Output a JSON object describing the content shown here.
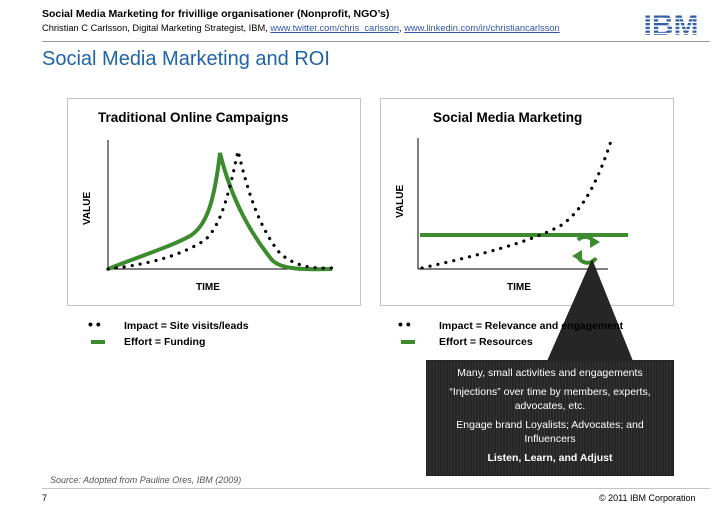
{
  "header": {
    "title": "Social Media Marketing for frivillige organisationer (Nonprofit, NGO’s)",
    "subtitle_prefix": "Christian C Carlsson, Digital Marketing Strategist, IBM, ",
    "link_twitter": "www.twitter.com/chris_carlsson",
    "separator": ", ",
    "link_linkedin": "www.linkedin.com/in/christiancarlsson",
    "logo": "IBM"
  },
  "slide_title": "Social Media Marketing and ROI",
  "panel_left": {
    "title": "Traditional Online Campaigns",
    "ylabel": "VALUE",
    "xlabel": "TIME",
    "legend": [
      {
        "symbol": "dots",
        "text": "Impact = Site visits/leads"
      },
      {
        "symbol": "bar",
        "text": "Effort = Funding"
      }
    ]
  },
  "panel_right": {
    "title": "Social Media Marketing",
    "ylabel": "VALUE",
    "xlabel": "TIME",
    "cycle_icon": "recycle-arrows-icon",
    "legend": [
      {
        "symbol": "dots",
        "text": "Impact = Relevance and engagement"
      },
      {
        "symbol": "bar",
        "text": "Effort = Resources"
      }
    ]
  },
  "callout": {
    "lines": [
      "Many, small activities and engagements",
      "“Injections” over time by members, experts, advocates, etc.",
      "Engage brand Loyalists; Advocates; and Influencers",
      "Listen, Learn, and Adjust"
    ]
  },
  "footer": {
    "source": "Source: Adopted from Pauline Ores, IBM (2009)",
    "page_number": "7",
    "copyright": "© 2011 IBM Corporation"
  },
  "colors": {
    "green": "#3d8b2f",
    "title_blue": "#1f63a8",
    "callout_bg": "#262626"
  }
}
